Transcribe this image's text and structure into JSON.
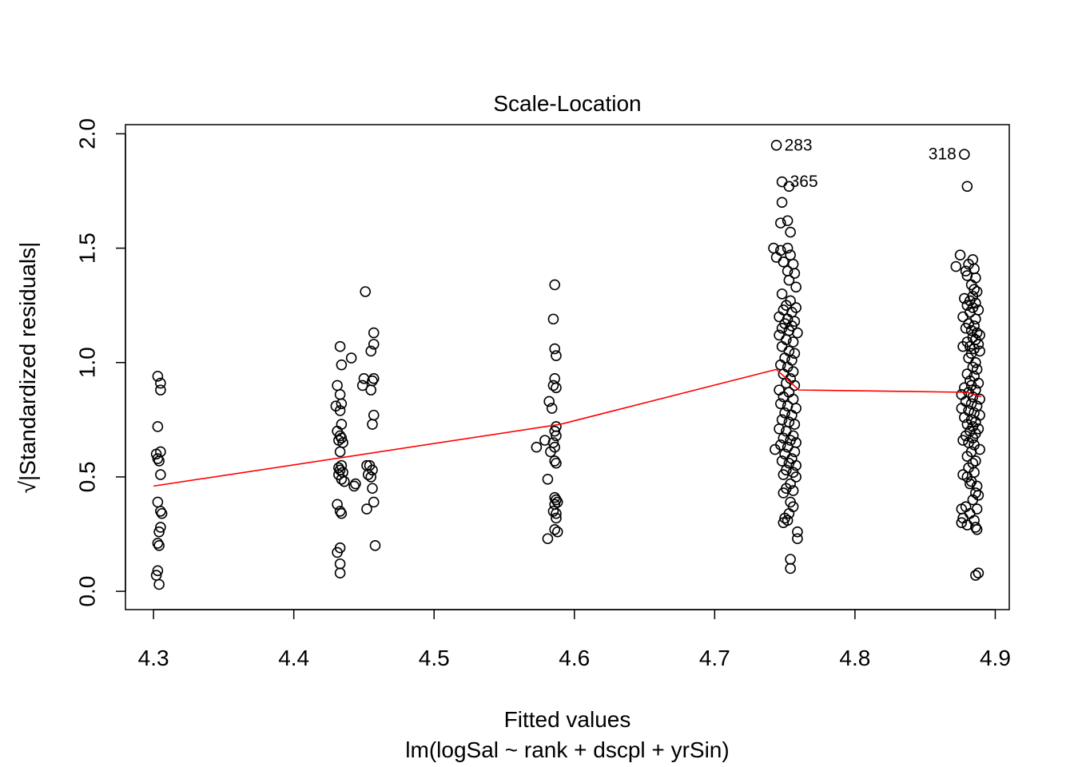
{
  "chart_data": {
    "type": "scatter",
    "title": "Scale-Location",
    "xlabel": "Fitted values",
    "subtitle": "lm(logSal ~ rank + dscpl + yrSin)",
    "ylabel_sqrt_symbol": "√",
    "ylabel": "|Standardized residuals|",
    "xlim": [
      4.28,
      4.91
    ],
    "ylim": [
      -0.08,
      2.04
    ],
    "x_ticks": [
      4.3,
      4.4,
      4.5,
      4.6,
      4.7,
      4.8,
      4.9
    ],
    "x_tick_labels": [
      "4.3",
      "4.4",
      "4.5",
      "4.6",
      "4.7",
      "4.8",
      "4.9"
    ],
    "y_ticks": [
      0.0,
      0.5,
      1.0,
      1.5,
      2.0
    ],
    "y_tick_labels": [
      "0.0",
      "0.5",
      "1.0",
      "1.5",
      "2.0"
    ],
    "grid": false,
    "point_style": "open-circle",
    "smoother_color": "#ff0000",
    "point_color": "#000000",
    "annotations": [
      {
        "label": "283",
        "x": 4.744,
        "y": 1.95,
        "side": "right"
      },
      {
        "label": "365",
        "x": 4.748,
        "y": 1.79,
        "side": "right"
      },
      {
        "label": "318",
        "x": 4.878,
        "y": 1.91,
        "side": "left"
      }
    ],
    "smoother": {
      "x": [
        4.3,
        4.44,
        4.59,
        4.744,
        4.76,
        4.88,
        4.89
      ],
      "y": [
        0.46,
        0.59,
        0.73,
        0.97,
        0.88,
        0.87,
        0.85
      ]
    },
    "points": [
      {
        "x": 4.303,
        "y": 0.94
      },
      {
        "x": 4.305,
        "y": 0.91
      },
      {
        "x": 4.305,
        "y": 0.88
      },
      {
        "x": 4.303,
        "y": 0.72
      },
      {
        "x": 4.305,
        "y": 0.61
      },
      {
        "x": 4.302,
        "y": 0.6
      },
      {
        "x": 4.303,
        "y": 0.58
      },
      {
        "x": 4.304,
        "y": 0.57
      },
      {
        "x": 4.305,
        "y": 0.51
      },
      {
        "x": 4.303,
        "y": 0.39
      },
      {
        "x": 4.305,
        "y": 0.35
      },
      {
        "x": 4.306,
        "y": 0.34
      },
      {
        "x": 4.305,
        "y": 0.28
      },
      {
        "x": 4.304,
        "y": 0.26
      },
      {
        "x": 4.303,
        "y": 0.21
      },
      {
        "x": 4.304,
        "y": 0.2
      },
      {
        "x": 4.303,
        "y": 0.09
      },
      {
        "x": 4.302,
        "y": 0.07
      },
      {
        "x": 4.304,
        "y": 0.03
      },
      {
        "x": 4.433,
        "y": 1.07
      },
      {
        "x": 4.434,
        "y": 0.99
      },
      {
        "x": 4.431,
        "y": 0.9
      },
      {
        "x": 4.433,
        "y": 0.86
      },
      {
        "x": 4.434,
        "y": 0.82
      },
      {
        "x": 4.43,
        "y": 0.81
      },
      {
        "x": 4.433,
        "y": 0.79
      },
      {
        "x": 4.434,
        "y": 0.73
      },
      {
        "x": 4.431,
        "y": 0.7
      },
      {
        "x": 4.433,
        "y": 0.68
      },
      {
        "x": 4.434,
        "y": 0.67
      },
      {
        "x": 4.432,
        "y": 0.66
      },
      {
        "x": 4.435,
        "y": 0.65
      },
      {
        "x": 4.433,
        "y": 0.61
      },
      {
        "x": 4.434,
        "y": 0.55
      },
      {
        "x": 4.432,
        "y": 0.54
      },
      {
        "x": 4.433,
        "y": 0.53
      },
      {
        "x": 4.435,
        "y": 0.52
      },
      {
        "x": 4.432,
        "y": 0.51
      },
      {
        "x": 4.434,
        "y": 0.49
      },
      {
        "x": 4.436,
        "y": 0.48
      },
      {
        "x": 4.431,
        "y": 0.38
      },
      {
        "x": 4.433,
        "y": 0.35
      },
      {
        "x": 4.434,
        "y": 0.34
      },
      {
        "x": 4.433,
        "y": 0.19
      },
      {
        "x": 4.431,
        "y": 0.17
      },
      {
        "x": 4.433,
        "y": 0.12
      },
      {
        "x": 4.433,
        "y": 0.08
      },
      {
        "x": 4.441,
        "y": 1.02
      },
      {
        "x": 4.443,
        "y": 0.46
      },
      {
        "x": 4.444,
        "y": 0.47
      },
      {
        "x": 4.451,
        "y": 1.31
      },
      {
        "x": 4.45,
        "y": 0.93
      },
      {
        "x": 4.449,
        "y": 0.9
      },
      {
        "x": 4.452,
        "y": 0.55
      },
      {
        "x": 4.453,
        "y": 0.51
      },
      {
        "x": 4.452,
        "y": 0.36
      },
      {
        "x": 4.457,
        "y": 1.13
      },
      {
        "x": 4.457,
        "y": 1.08
      },
      {
        "x": 4.455,
        "y": 1.05
      },
      {
        "x": 4.457,
        "y": 0.93
      },
      {
        "x": 4.456,
        "y": 0.92
      },
      {
        "x": 4.455,
        "y": 0.88
      },
      {
        "x": 4.457,
        "y": 0.77
      },
      {
        "x": 4.456,
        "y": 0.73
      },
      {
        "x": 4.454,
        "y": 0.55
      },
      {
        "x": 4.456,
        "y": 0.53
      },
      {
        "x": 4.455,
        "y": 0.5
      },
      {
        "x": 4.456,
        "y": 0.45
      },
      {
        "x": 4.457,
        "y": 0.39
      },
      {
        "x": 4.458,
        "y": 0.2
      },
      {
        "x": 4.573,
        "y": 0.63
      },
      {
        "x": 4.579,
        "y": 0.66
      },
      {
        "x": 4.581,
        "y": 0.49
      },
      {
        "x": 4.582,
        "y": 0.83
      },
      {
        "x": 4.581,
        "y": 0.23
      },
      {
        "x": 4.586,
        "y": 1.34
      },
      {
        "x": 4.585,
        "y": 1.19
      },
      {
        "x": 4.586,
        "y": 1.06
      },
      {
        "x": 4.587,
        "y": 1.03
      },
      {
        "x": 4.586,
        "y": 0.93
      },
      {
        "x": 4.585,
        "y": 0.9
      },
      {
        "x": 4.587,
        "y": 0.89
      },
      {
        "x": 4.584,
        "y": 0.8
      },
      {
        "x": 4.587,
        "y": 0.72
      },
      {
        "x": 4.586,
        "y": 0.7
      },
      {
        "x": 4.587,
        "y": 0.68
      },
      {
        "x": 4.585,
        "y": 0.65
      },
      {
        "x": 4.586,
        "y": 0.63
      },
      {
        "x": 4.583,
        "y": 0.61
      },
      {
        "x": 4.586,
        "y": 0.57
      },
      {
        "x": 4.587,
        "y": 0.56
      },
      {
        "x": 4.586,
        "y": 0.41
      },
      {
        "x": 4.587,
        "y": 0.4
      },
      {
        "x": 4.588,
        "y": 0.39
      },
      {
        "x": 4.586,
        "y": 0.38
      },
      {
        "x": 4.585,
        "y": 0.35
      },
      {
        "x": 4.587,
        "y": 0.34
      },
      {
        "x": 4.587,
        "y": 0.32
      },
      {
        "x": 4.586,
        "y": 0.27
      },
      {
        "x": 4.588,
        "y": 0.26
      },
      {
        "x": 4.744,
        "y": 1.95
      },
      {
        "x": 4.748,
        "y": 1.79
      },
      {
        "x": 4.753,
        "y": 1.77
      },
      {
        "x": 4.748,
        "y": 1.7
      },
      {
        "x": 4.752,
        "y": 1.62
      },
      {
        "x": 4.747,
        "y": 1.61
      },
      {
        "x": 4.754,
        "y": 1.57
      },
      {
        "x": 4.742,
        "y": 1.5
      },
      {
        "x": 4.747,
        "y": 1.49
      },
      {
        "x": 4.752,
        "y": 1.5
      },
      {
        "x": 4.744,
        "y": 1.46
      },
      {
        "x": 4.754,
        "y": 1.47
      },
      {
        "x": 4.749,
        "y": 1.44
      },
      {
        "x": 4.756,
        "y": 1.43
      },
      {
        "x": 4.752,
        "y": 1.4
      },
      {
        "x": 4.757,
        "y": 1.39
      },
      {
        "x": 4.753,
        "y": 1.36
      },
      {
        "x": 4.758,
        "y": 1.33
      },
      {
        "x": 4.748,
        "y": 1.3
      },
      {
        "x": 4.754,
        "y": 1.27
      },
      {
        "x": 4.751,
        "y": 1.25
      },
      {
        "x": 4.758,
        "y": 1.24
      },
      {
        "x": 4.749,
        "y": 1.23
      },
      {
        "x": 4.755,
        "y": 1.22
      },
      {
        "x": 4.746,
        "y": 1.2
      },
      {
        "x": 4.752,
        "y": 1.19
      },
      {
        "x": 4.757,
        "y": 1.18
      },
      {
        "x": 4.75,
        "y": 1.17
      },
      {
        "x": 4.755,
        "y": 1.16
      },
      {
        "x": 4.748,
        "y": 1.15
      },
      {
        "x": 4.753,
        "y": 1.14
      },
      {
        "x": 4.759,
        "y": 1.13
      },
      {
        "x": 4.746,
        "y": 1.12
      },
      {
        "x": 4.751,
        "y": 1.1
      },
      {
        "x": 4.756,
        "y": 1.09
      },
      {
        "x": 4.748,
        "y": 1.07
      },
      {
        "x": 4.753,
        "y": 1.05
      },
      {
        "x": 4.757,
        "y": 1.04
      },
      {
        "x": 4.75,
        "y": 1.02
      },
      {
        "x": 4.755,
        "y": 1.01
      },
      {
        "x": 4.747,
        "y": 0.99
      },
      {
        "x": 4.752,
        "y": 0.98
      },
      {
        "x": 4.756,
        "y": 0.96
      },
      {
        "x": 4.749,
        "y": 0.95
      },
      {
        "x": 4.754,
        "y": 0.93
      },
      {
        "x": 4.751,
        "y": 0.91
      },
      {
        "x": 4.757,
        "y": 0.9
      },
      {
        "x": 4.746,
        "y": 0.88
      },
      {
        "x": 4.753,
        "y": 0.87
      },
      {
        "x": 4.749,
        "y": 0.85
      },
      {
        "x": 4.756,
        "y": 0.84
      },
      {
        "x": 4.747,
        "y": 0.82
      },
      {
        "x": 4.752,
        "y": 0.81
      },
      {
        "x": 4.758,
        "y": 0.8
      },
      {
        "x": 4.75,
        "y": 0.78
      },
      {
        "x": 4.755,
        "y": 0.77
      },
      {
        "x": 4.748,
        "y": 0.75
      },
      {
        "x": 4.753,
        "y": 0.74
      },
      {
        "x": 4.757,
        "y": 0.73
      },
      {
        "x": 4.746,
        "y": 0.71
      },
      {
        "x": 4.751,
        "y": 0.7
      },
      {
        "x": 4.756,
        "y": 0.68
      },
      {
        "x": 4.749,
        "y": 0.67
      },
      {
        "x": 4.754,
        "y": 0.66
      },
      {
        "x": 4.758,
        "y": 0.65
      },
      {
        "x": 4.747,
        "y": 0.64
      },
      {
        "x": 4.752,
        "y": 0.63
      },
      {
        "x": 4.743,
        "y": 0.62
      },
      {
        "x": 4.757,
        "y": 0.61
      },
      {
        "x": 4.75,
        "y": 0.6
      },
      {
        "x": 4.755,
        "y": 0.58
      },
      {
        "x": 4.748,
        "y": 0.57
      },
      {
        "x": 4.753,
        "y": 0.56
      },
      {
        "x": 4.758,
        "y": 0.55
      },
      {
        "x": 4.751,
        "y": 0.53
      },
      {
        "x": 4.756,
        "y": 0.52
      },
      {
        "x": 4.749,
        "y": 0.51
      },
      {
        "x": 4.758,
        "y": 0.5
      },
      {
        "x": 4.754,
        "y": 0.47
      },
      {
        "x": 4.751,
        "y": 0.45
      },
      {
        "x": 4.756,
        "y": 0.44
      },
      {
        "x": 4.749,
        "y": 0.43
      },
      {
        "x": 4.754,
        "y": 0.39
      },
      {
        "x": 4.756,
        "y": 0.37
      },
      {
        "x": 4.753,
        "y": 0.34
      },
      {
        "x": 4.75,
        "y": 0.32
      },
      {
        "x": 4.752,
        "y": 0.31
      },
      {
        "x": 4.749,
        "y": 0.3
      },
      {
        "x": 4.759,
        "y": 0.26
      },
      {
        "x": 4.759,
        "y": 0.23
      },
      {
        "x": 4.754,
        "y": 0.14
      },
      {
        "x": 4.754,
        "y": 0.1
      },
      {
        "x": 4.878,
        "y": 1.91
      },
      {
        "x": 4.88,
        "y": 1.77
      },
      {
        "x": 4.875,
        "y": 1.47
      },
      {
        "x": 4.884,
        "y": 1.45
      },
      {
        "x": 4.872,
        "y": 1.42
      },
      {
        "x": 4.881,
        "y": 1.43
      },
      {
        "x": 4.879,
        "y": 1.4
      },
      {
        "x": 4.885,
        "y": 1.41
      },
      {
        "x": 4.88,
        "y": 1.38
      },
      {
        "x": 4.886,
        "y": 1.37
      },
      {
        "x": 4.883,
        "y": 1.34
      },
      {
        "x": 4.885,
        "y": 1.32
      },
      {
        "x": 4.887,
        "y": 1.31
      },
      {
        "x": 4.884,
        "y": 1.29
      },
      {
        "x": 4.878,
        "y": 1.28
      },
      {
        "x": 4.882,
        "y": 1.27
      },
      {
        "x": 4.886,
        "y": 1.26
      },
      {
        "x": 4.88,
        "y": 1.25
      },
      {
        "x": 4.884,
        "y": 1.24
      },
      {
        "x": 4.888,
        "y": 1.23
      },
      {
        "x": 4.882,
        "y": 1.22
      },
      {
        "x": 4.877,
        "y": 1.2
      },
      {
        "x": 4.886,
        "y": 1.19
      },
      {
        "x": 4.881,
        "y": 1.17
      },
      {
        "x": 4.885,
        "y": 1.16
      },
      {
        "x": 4.879,
        "y": 1.15
      },
      {
        "x": 4.883,
        "y": 1.14
      },
      {
        "x": 4.887,
        "y": 1.13
      },
      {
        "x": 4.889,
        "y": 1.12
      },
      {
        "x": 4.884,
        "y": 1.11
      },
      {
        "x": 4.886,
        "y": 1.1
      },
      {
        "x": 4.88,
        "y": 1.09
      },
      {
        "x": 4.888,
        "y": 1.08
      },
      {
        "x": 4.877,
        "y": 1.07
      },
      {
        "x": 4.882,
        "y": 1.07
      },
      {
        "x": 4.885,
        "y": 1.06
      },
      {
        "x": 4.889,
        "y": 1.05
      },
      {
        "x": 4.883,
        "y": 1.04
      },
      {
        "x": 4.881,
        "y": 1.02
      },
      {
        "x": 4.886,
        "y": 1.0
      },
      {
        "x": 4.884,
        "y": 0.98
      },
      {
        "x": 4.887,
        "y": 0.97
      },
      {
        "x": 4.88,
        "y": 0.95
      },
      {
        "x": 4.885,
        "y": 0.94
      },
      {
        "x": 4.882,
        "y": 0.92
      },
      {
        "x": 4.888,
        "y": 0.91
      },
      {
        "x": 4.883,
        "y": 0.9
      },
      {
        "x": 4.878,
        "y": 0.89
      },
      {
        "x": 4.886,
        "y": 0.88
      },
      {
        "x": 4.881,
        "y": 0.87
      },
      {
        "x": 4.876,
        "y": 0.86
      },
      {
        "x": 4.884,
        "y": 0.85
      },
      {
        "x": 4.889,
        "y": 0.84
      },
      {
        "x": 4.879,
        "y": 0.83
      },
      {
        "x": 4.883,
        "y": 0.82
      },
      {
        "x": 4.887,
        "y": 0.81
      },
      {
        "x": 4.876,
        "y": 0.8
      },
      {
        "x": 4.881,
        "y": 0.79
      },
      {
        "x": 4.885,
        "y": 0.78
      },
      {
        "x": 4.889,
        "y": 0.77
      },
      {
        "x": 4.878,
        "y": 0.76
      },
      {
        "x": 4.883,
        "y": 0.75
      },
      {
        "x": 4.886,
        "y": 0.74
      },
      {
        "x": 4.88,
        "y": 0.73
      },
      {
        "x": 4.884,
        "y": 0.72
      },
      {
        "x": 4.888,
        "y": 0.71
      },
      {
        "x": 4.882,
        "y": 0.7
      },
      {
        "x": 4.886,
        "y": 0.69
      },
      {
        "x": 4.879,
        "y": 0.68
      },
      {
        "x": 4.884,
        "y": 0.67
      },
      {
        "x": 4.877,
        "y": 0.66
      },
      {
        "x": 4.881,
        "y": 0.65
      },
      {
        "x": 4.885,
        "y": 0.64
      },
      {
        "x": 4.889,
        "y": 0.62
      },
      {
        "x": 4.883,
        "y": 0.61
      },
      {
        "x": 4.88,
        "y": 0.59
      },
      {
        "x": 4.886,
        "y": 0.57
      },
      {
        "x": 4.884,
        "y": 0.56
      },
      {
        "x": 4.881,
        "y": 0.54
      },
      {
        "x": 4.885,
        "y": 0.52
      },
      {
        "x": 4.877,
        "y": 0.51
      },
      {
        "x": 4.88,
        "y": 0.5
      },
      {
        "x": 4.883,
        "y": 0.48
      },
      {
        "x": 4.882,
        "y": 0.47
      },
      {
        "x": 4.887,
        "y": 0.46
      },
      {
        "x": 4.886,
        "y": 0.43
      },
      {
        "x": 4.888,
        "y": 0.42
      },
      {
        "x": 4.884,
        "y": 0.4
      },
      {
        "x": 4.879,
        "y": 0.37
      },
      {
        "x": 4.876,
        "y": 0.36
      },
      {
        "x": 4.887,
        "y": 0.36
      },
      {
        "x": 4.882,
        "y": 0.34
      },
      {
        "x": 4.877,
        "y": 0.32
      },
      {
        "x": 4.885,
        "y": 0.31
      },
      {
        "x": 4.876,
        "y": 0.3
      },
      {
        "x": 4.88,
        "y": 0.29
      },
      {
        "x": 4.886,
        "y": 0.28
      },
      {
        "x": 4.887,
        "y": 0.27
      },
      {
        "x": 4.888,
        "y": 0.08
      },
      {
        "x": 4.886,
        "y": 0.07
      }
    ]
  }
}
